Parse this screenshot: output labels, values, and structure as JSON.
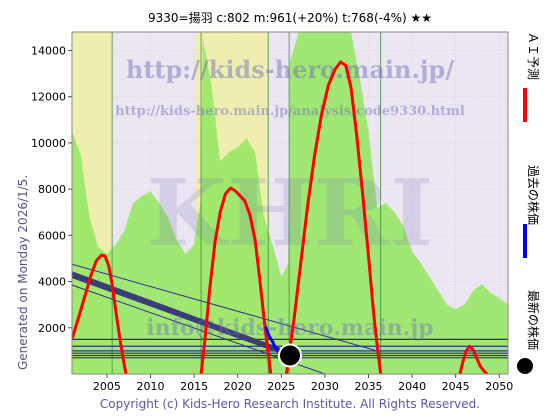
{
  "header": {
    "title": "9330=揚羽    c:802   m:961(+20%)   t:768(-4%)   ★★"
  },
  "side_label": "Generated on Monday 2026/1/5.",
  "footer": {
    "copyright": "Copyright (c) Kids-Hero Research Institute. All Rights Reserved."
  },
  "watermark": {
    "url1": "http://kids-hero.main.jp/",
    "url2": "http://kids-hero.main.jp/analysis/code9330.html",
    "big": "KHRI",
    "email": "info@kids-hero.main.jp"
  },
  "legend": {
    "items": [
      {
        "label": "ＡＩ予測",
        "color": "#ff0000",
        "marker": "line"
      },
      {
        "label": "過去の株価",
        "color": "#0000ff",
        "marker": "line"
      },
      {
        "label": "最新の株価",
        "color": "#000000",
        "marker": "dot"
      }
    ]
  },
  "colors": {
    "plot_bg": "#ece6f2",
    "green_fill": "#99e766",
    "yellow_fill": "#f0f0a0",
    "band_dark": "#3c3c78",
    "hline": "#2f2f8a",
    "ai_line": "#ff0000",
    "past_line": "#0000ff",
    "grid": "#c8c8c8"
  },
  "chart_data": {
    "type": "line",
    "title": "9330=揚羽    c:802   m:961(+20%)   t:768(-4%)   ★★",
    "xlim": [
      2001,
      2051
    ],
    "ylim": [
      0,
      14800
    ],
    "x_ticks": [
      2005,
      2010,
      2015,
      2020,
      2025,
      2030,
      2035,
      2040,
      2045,
      2050
    ],
    "y_ticks": [
      2000,
      4000,
      6000,
      8000,
      10000,
      12000,
      14000
    ],
    "grid": true,
    "legend_position": "right",
    "ai_prediction": {
      "segments": [
        [
          [
            2001.0,
            1500
          ],
          [
            2001.8,
            2500
          ],
          [
            2002.5,
            3400
          ],
          [
            2003.2,
            4300
          ],
          [
            2003.8,
            4900
          ],
          [
            2004.4,
            5150
          ],
          [
            2004.8,
            5100
          ],
          [
            2005.2,
            4700
          ],
          [
            2005.6,
            3900
          ],
          [
            2006.0,
            2800
          ],
          [
            2006.5,
            1500
          ],
          [
            2006.9,
            600
          ],
          [
            2007.2,
            0
          ]
        ],
        [
          [
            2015.8,
            0
          ],
          [
            2016.2,
            1300
          ],
          [
            2016.8,
            3700
          ],
          [
            2017.4,
            5700
          ],
          [
            2018.0,
            7000
          ],
          [
            2018.6,
            7800
          ],
          [
            2019.2,
            8050
          ],
          [
            2019.8,
            7900
          ],
          [
            2020.3,
            7700
          ],
          [
            2020.8,
            7500
          ],
          [
            2021.4,
            6900
          ],
          [
            2022.0,
            5800
          ],
          [
            2022.5,
            4200
          ],
          [
            2023.0,
            2500
          ],
          [
            2023.4,
            1200
          ],
          [
            2023.8,
            0
          ]
        ],
        [
          [
            2025.6,
            0
          ],
          [
            2025.9,
            800
          ],
          [
            2026.5,
            2500
          ],
          [
            2027.2,
            4700
          ],
          [
            2028.0,
            7200
          ],
          [
            2028.8,
            9400
          ],
          [
            2029.6,
            11200
          ],
          [
            2030.4,
            12500
          ],
          [
            2031.2,
            13200
          ],
          [
            2031.8,
            13500
          ],
          [
            2032.4,
            13350
          ],
          [
            2033.0,
            12400
          ],
          [
            2033.6,
            10500
          ],
          [
            2034.3,
            7900
          ],
          [
            2035.0,
            5100
          ],
          [
            2035.6,
            2600
          ],
          [
            2036.1,
            900
          ],
          [
            2036.4,
            0
          ]
        ],
        [
          [
            2045.5,
            0
          ],
          [
            2045.8,
            500
          ],
          [
            2046.2,
            1000
          ],
          [
            2046.6,
            1200
          ],
          [
            2047.0,
            1050
          ],
          [
            2047.4,
            700
          ],
          [
            2047.8,
            350
          ],
          [
            2048.2,
            150
          ],
          [
            2048.6,
            0
          ]
        ]
      ]
    },
    "past_price": [
      [
        2023.2,
        2050
      ],
      [
        2023.6,
        1650
      ],
      [
        2024.0,
        1400
      ],
      [
        2024.3,
        1150
      ],
      [
        2024.6,
        1050
      ],
      [
        2024.9,
        1000
      ],
      [
        2025.2,
        980
      ],
      [
        2025.5,
        900
      ],
      [
        2025.8,
        850
      ],
      [
        2026.0,
        802
      ]
    ],
    "latest_price": {
      "x": 2026.0,
      "y": 802
    },
    "trend_band": {
      "x": [
        2001,
        2026.2
      ],
      "top": [
        4450,
        950
      ],
      "bottom": [
        4150,
        700
      ]
    },
    "trend_upper_line": {
      "x": [
        2001,
        2036
      ],
      "y": [
        4750,
        1000
      ]
    },
    "trend_lower_line": {
      "x": [
        2001,
        2030
      ],
      "y": [
        3850,
        0
      ]
    },
    "hlines": [
      1500,
      1200,
      1000,
      900,
      802,
      700
    ],
    "green_area": [
      [
        2001,
        10500
      ],
      [
        2002,
        9500
      ],
      [
        2003,
        6800
      ],
      [
        2004,
        5500
      ],
      [
        2005,
        5200
      ],
      [
        2006,
        5600
      ],
      [
        2007,
        6200
      ],
      [
        2008,
        7400
      ],
      [
        2009,
        7700
      ],
      [
        2010,
        7900
      ],
      [
        2011,
        7400
      ],
      [
        2012,
        6800
      ],
      [
        2013,
        5800
      ],
      [
        2014,
        5200
      ],
      [
        2015,
        5600
      ],
      [
        2015.8,
        7600
      ],
      [
        2016,
        14500
      ],
      [
        2017,
        12500
      ],
      [
        2018,
        9200
      ],
      [
        2019,
        9600
      ],
      [
        2020,
        9800
      ],
      [
        2021,
        10200
      ],
      [
        2022,
        9600
      ],
      [
        2023,
        6800
      ],
      [
        2024,
        5600
      ],
      [
        2025,
        4200
      ],
      [
        2025.8,
        4800
      ],
      [
        2026,
        13500
      ],
      [
        2027,
        14800
      ],
      [
        2028,
        14800
      ],
      [
        2029,
        14800
      ],
      [
        2030,
        14800
      ],
      [
        2031,
        14800
      ],
      [
        2032,
        14800
      ],
      [
        2033,
        14800
      ],
      [
        2034,
        12800
      ],
      [
        2035,
        10500
      ],
      [
        2036,
        7200
      ],
      [
        2037,
        7400
      ],
      [
        2038,
        7000
      ],
      [
        2039,
        6400
      ],
      [
        2040,
        5300
      ],
      [
        2041,
        4800
      ],
      [
        2042,
        4200
      ],
      [
        2043,
        3600
      ],
      [
        2044,
        3000
      ],
      [
        2045,
        2800
      ],
      [
        2046,
        3000
      ],
      [
        2047,
        3600
      ],
      [
        2048,
        3900
      ],
      [
        2049,
        3500
      ],
      [
        2050,
        3300
      ],
      [
        2051,
        3000
      ]
    ],
    "yellow_area": [
      [
        2001,
        14800
      ],
      [
        2005.6,
        14800
      ],
      [
        2005.6,
        0
      ],
      [
        2001,
        0
      ]
    ],
    "yellow_area2": [
      [
        2015.2,
        14800
      ],
      [
        2023.5,
        14800
      ],
      [
        2023.5,
        0
      ],
      [
        2015.2,
        0
      ]
    ]
  }
}
